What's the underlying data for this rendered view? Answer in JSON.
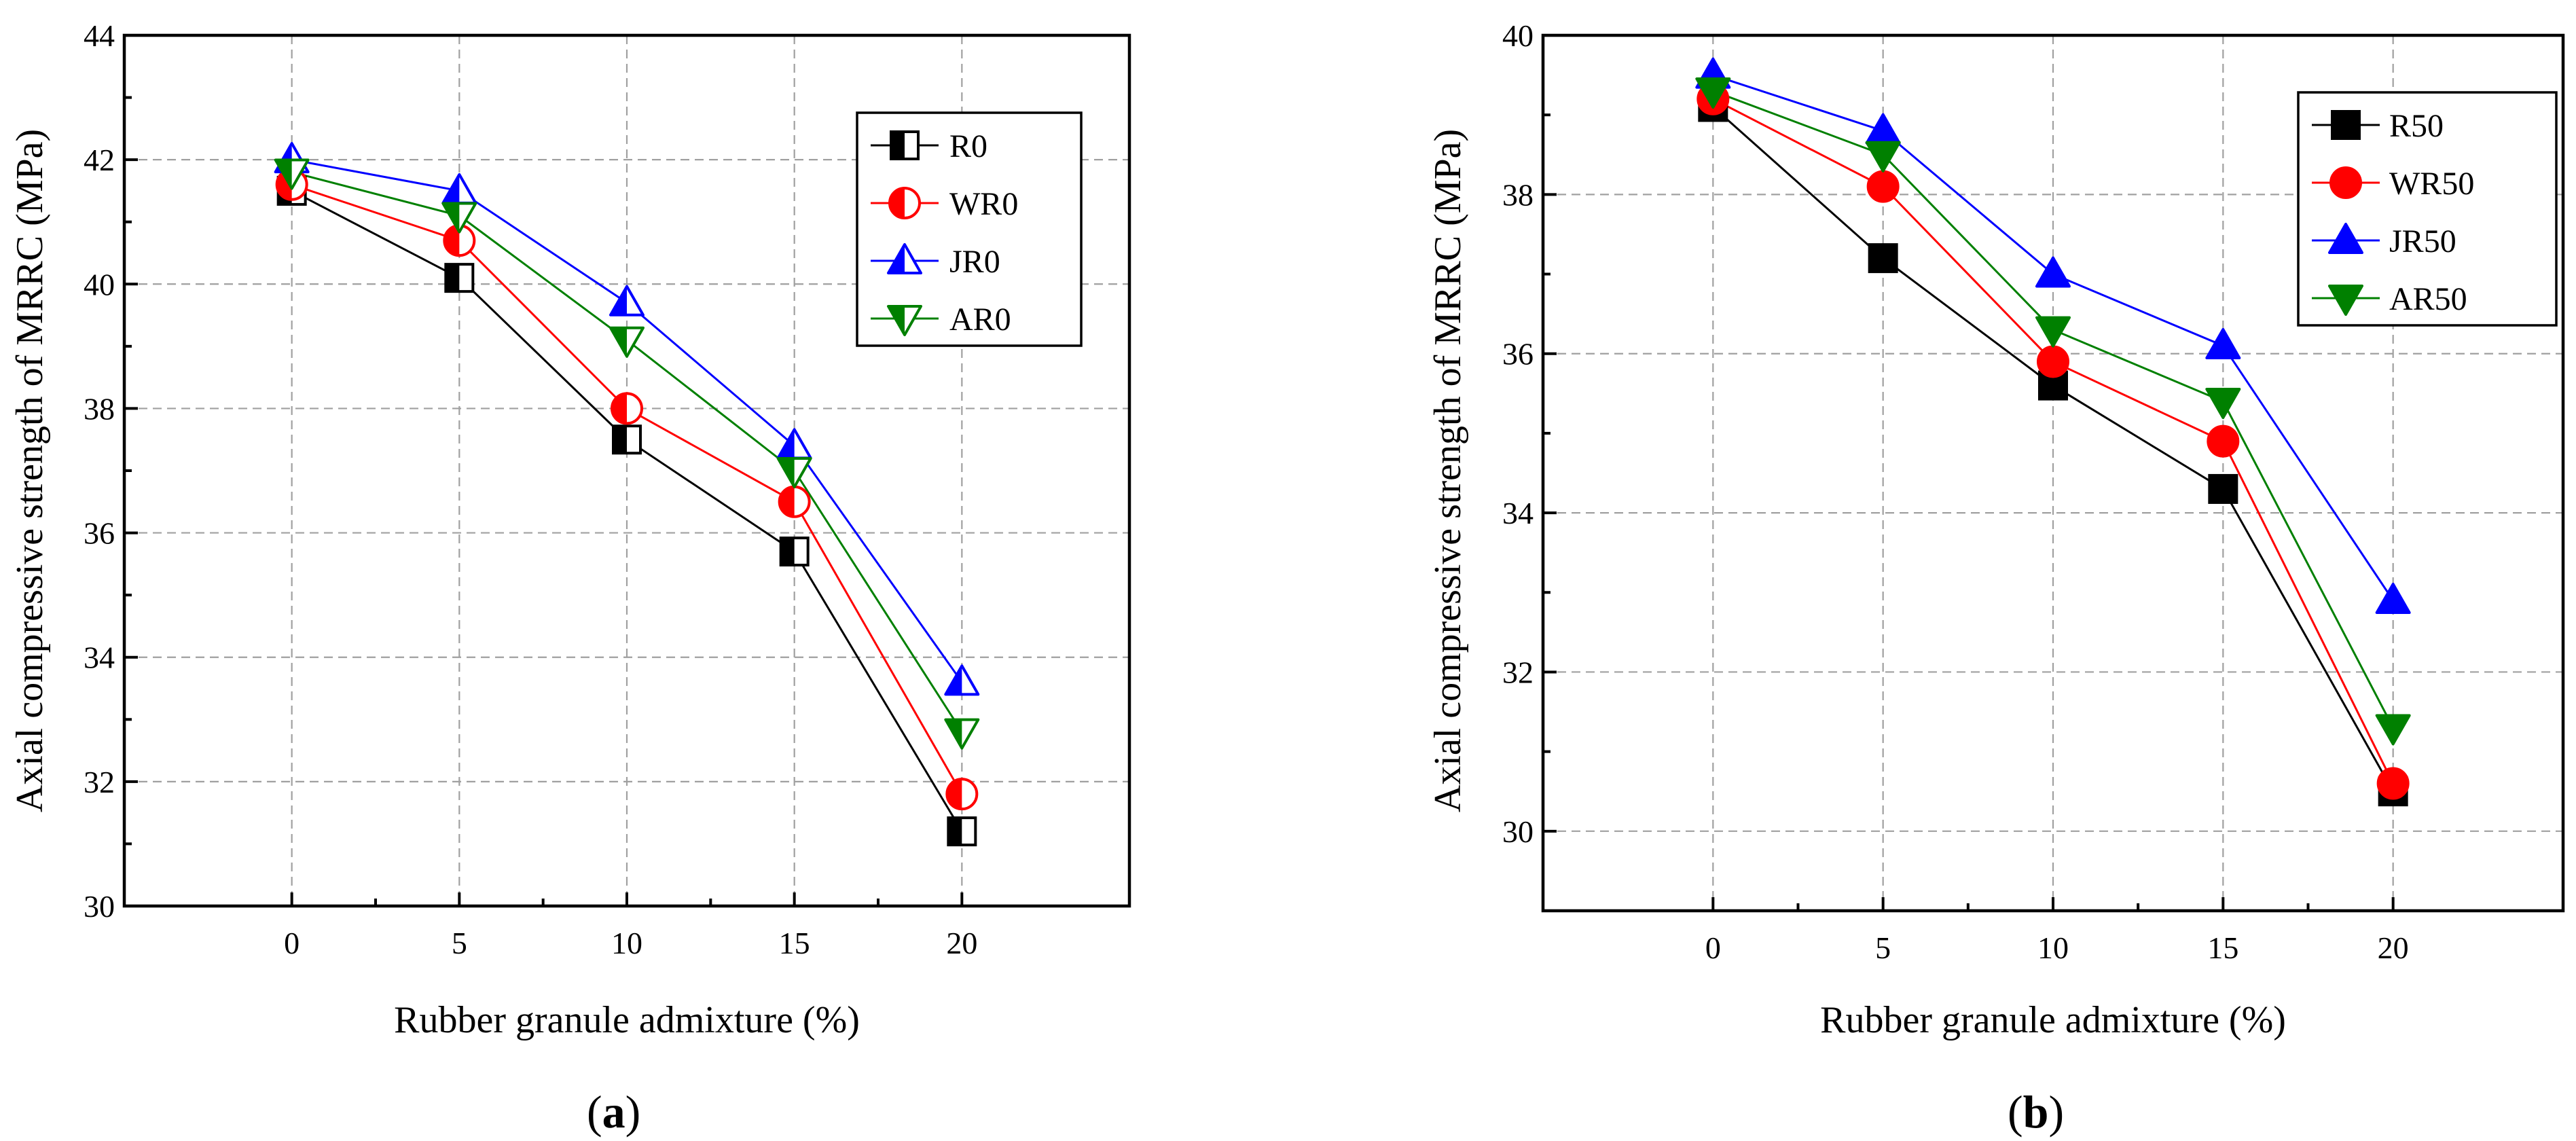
{
  "chart_data": [
    {
      "type": "line",
      "panel_label": "a",
      "xlabel": "Rubber granule admixture (%)",
      "ylabel": "Axial compressive strength of MRRC (MPa)",
      "x": [
        0,
        5,
        10,
        15,
        20
      ],
      "xlim": [
        -5,
        25
      ],
      "ylim": [
        30,
        44
      ],
      "xticks": [
        "0",
        "5",
        "10",
        "15",
        "20"
      ],
      "yticks": [
        "30",
        "32",
        "34",
        "36",
        "38",
        "40",
        "42",
        "44"
      ],
      "grid": true,
      "legend_position": "top-right",
      "series": [
        {
          "name": "R0",
          "values": [
            41.5,
            40.1,
            37.5,
            35.7,
            31.2
          ],
          "color": "#000000",
          "marker": "half-square"
        },
        {
          "name": "WR0",
          "values": [
            41.6,
            40.7,
            38.0,
            36.5,
            31.8
          ],
          "color": "#ff0000",
          "marker": "half-circle"
        },
        {
          "name": "JR0",
          "values": [
            42.0,
            41.5,
            39.7,
            37.4,
            33.6
          ],
          "color": "#0000ff",
          "marker": "half-triangle-up"
        },
        {
          "name": "AR0",
          "values": [
            41.8,
            41.1,
            39.1,
            37.0,
            32.8
          ],
          "color": "#008000",
          "marker": "half-triangle-down"
        }
      ]
    },
    {
      "type": "line",
      "panel_label": "b",
      "xlabel": "Rubber granule admixture (%)",
      "ylabel": "Axial compressive strength of MRRC (MPa)",
      "x": [
        0,
        5,
        10,
        15,
        20
      ],
      "xlim": [
        -5,
        25
      ],
      "ylim": [
        29,
        40
      ],
      "xticks": [
        "0",
        "5",
        "10",
        "15",
        "20"
      ],
      "yticks": [
        "30",
        "32",
        "34",
        "36",
        "38",
        "40"
      ],
      "grid": true,
      "legend_position": "top-right",
      "series": [
        {
          "name": "R50",
          "values": [
            39.1,
            37.2,
            35.6,
            34.3,
            30.5
          ],
          "color": "#000000",
          "marker": "square"
        },
        {
          "name": "WR50",
          "values": [
            39.2,
            38.1,
            35.9,
            34.9,
            30.6
          ],
          "color": "#ff0000",
          "marker": "circle"
        },
        {
          "name": "JR50",
          "values": [
            39.5,
            38.8,
            37.0,
            36.1,
            32.9
          ],
          "color": "#0000ff",
          "marker": "triangle-up"
        },
        {
          "name": "AR50",
          "values": [
            39.3,
            38.5,
            36.3,
            35.4,
            31.3
          ],
          "color": "#008000",
          "marker": "triangle-down"
        }
      ]
    }
  ]
}
